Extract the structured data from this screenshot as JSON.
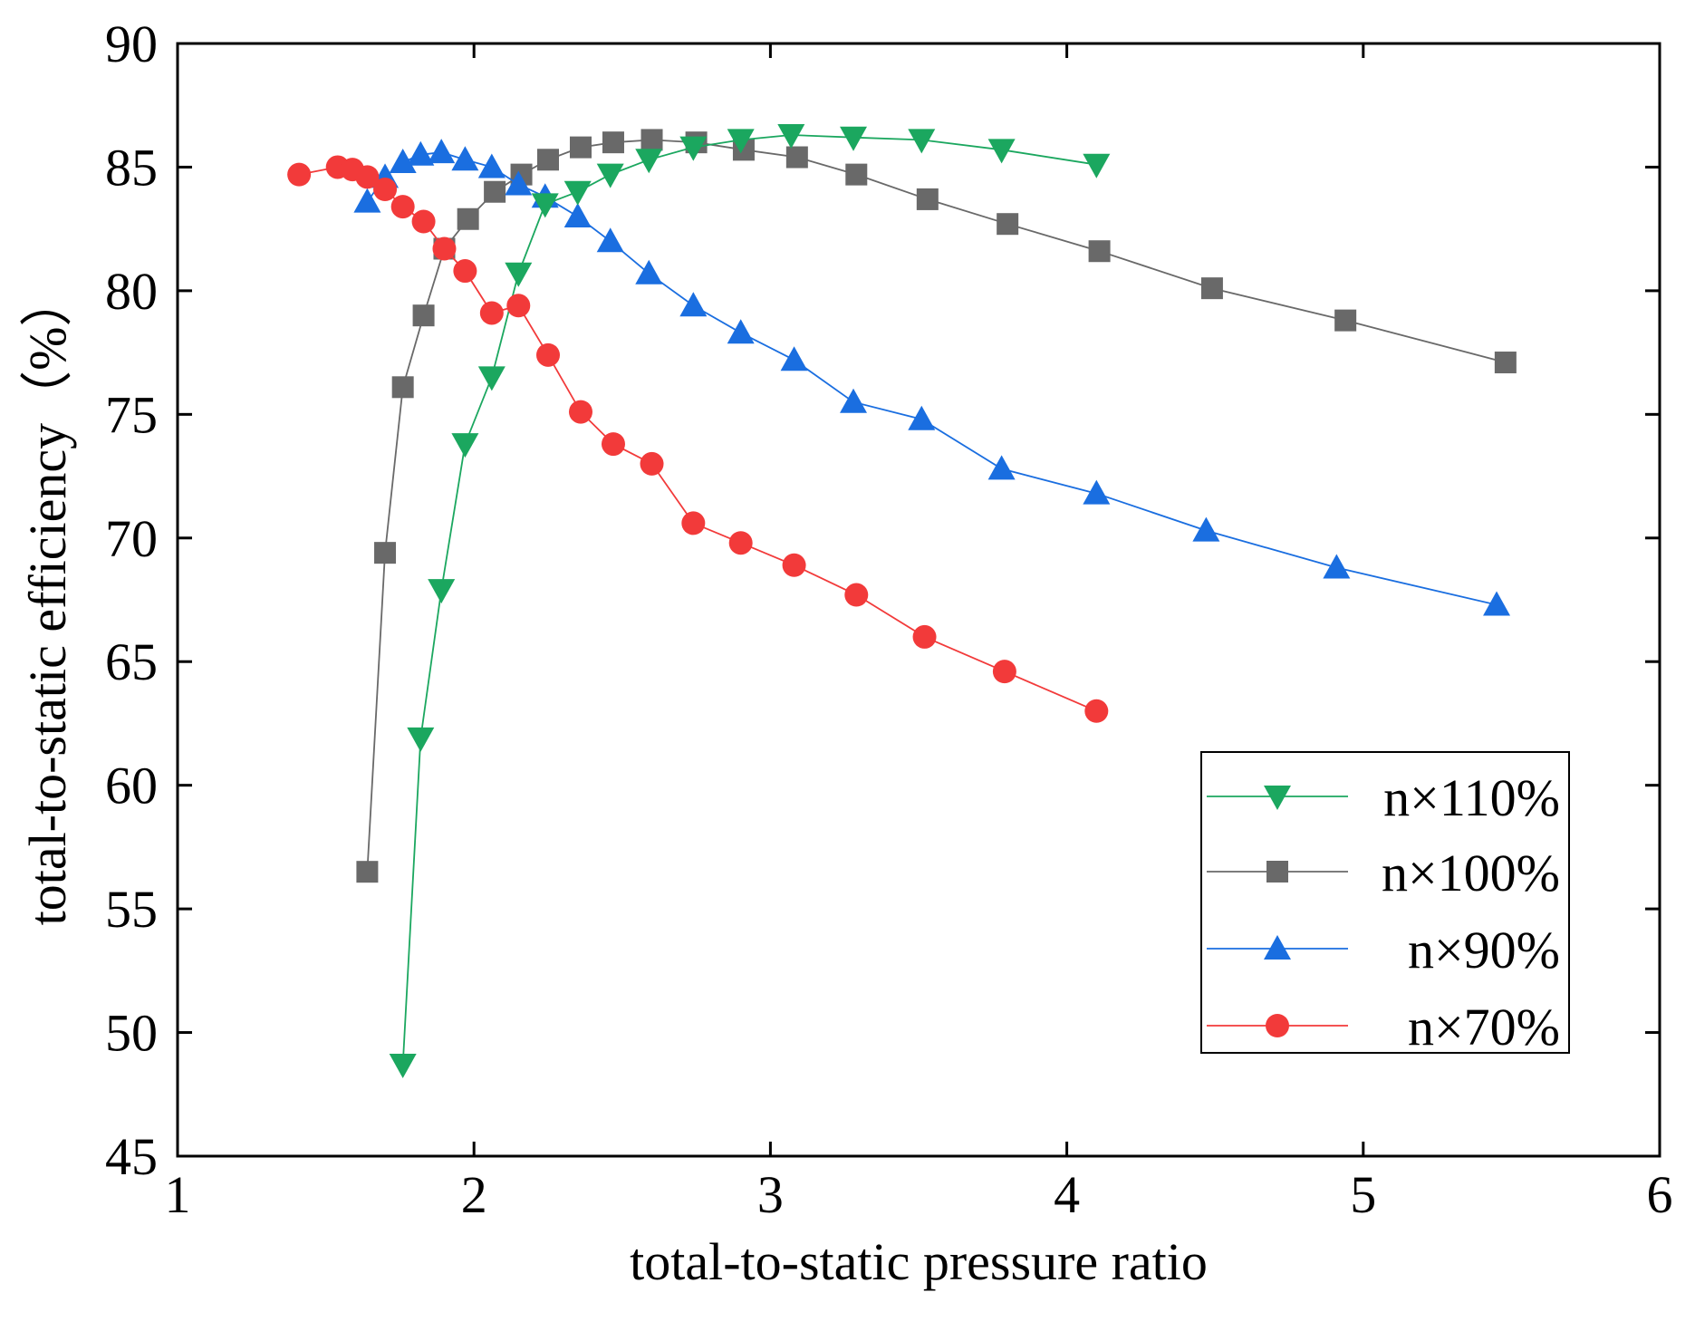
{
  "chart_data": {
    "type": "scatter",
    "title": "",
    "xlabel": "total-to-static pressure ratio",
    "ylabel": "total-to-static efficiency（%）",
    "xlim": [
      1,
      6
    ],
    "ylim": [
      45,
      90
    ],
    "xticks": [
      "1",
      "2",
      "3",
      "4",
      "5",
      "6"
    ],
    "yticks": [
      "45",
      "50",
      "55",
      "60",
      "65",
      "70",
      "75",
      "80",
      "85",
      "90"
    ],
    "grid": false,
    "legend_position": "bottom-right",
    "series": [
      {
        "name": "n×110%",
        "color": "#1ba75f",
        "marker": "triangle-down",
        "x": [
          1.76,
          1.82,
          1.89,
          1.97,
          2.06,
          2.15,
          2.24,
          2.35,
          2.46,
          2.59,
          2.74,
          2.9,
          3.07,
          3.28,
          3.51,
          3.78,
          4.1
        ],
        "y": [
          48.7,
          61.9,
          67.9,
          73.8,
          76.5,
          80.7,
          83.5,
          84.0,
          84.7,
          85.3,
          85.8,
          86.1,
          86.3,
          86.2,
          86.1,
          85.7,
          85.1
        ]
      },
      {
        "name": "n×100%",
        "color": "#696969",
        "marker": "square",
        "x": [
          1.64,
          1.7,
          1.76,
          1.83,
          1.9,
          1.98,
          2.07,
          2.16,
          2.25,
          2.36,
          2.47,
          2.6,
          2.75,
          2.91,
          3.09,
          3.29,
          3.53,
          3.8,
          4.11,
          4.49,
          4.94,
          5.48
        ],
        "y": [
          56.5,
          69.4,
          76.1,
          79.0,
          81.7,
          82.9,
          84.0,
          84.7,
          85.3,
          85.8,
          86.0,
          86.1,
          86.0,
          85.7,
          85.4,
          84.7,
          83.7,
          82.7,
          81.6,
          80.1,
          78.8,
          77.1
        ]
      },
      {
        "name": "n×90%",
        "color": "#1a6ee0",
        "marker": "triangle-up",
        "x": [
          1.64,
          1.7,
          1.76,
          1.82,
          1.89,
          1.97,
          2.06,
          2.15,
          2.24,
          2.35,
          2.46,
          2.59,
          2.74,
          2.9,
          3.08,
          3.28,
          3.51,
          3.78,
          4.1,
          4.47,
          4.91,
          5.45
        ],
        "y": [
          83.6,
          84.6,
          85.2,
          85.5,
          85.6,
          85.3,
          85.0,
          84.3,
          83.8,
          83.0,
          82.0,
          80.7,
          79.4,
          78.3,
          77.2,
          75.5,
          74.8,
          72.8,
          71.8,
          70.3,
          68.8,
          67.3
        ]
      },
      {
        "name": "n×70%",
        "color": "#f23a3a",
        "marker": "circle",
        "x": [
          1.41,
          1.54,
          1.59,
          1.64,
          1.7,
          1.76,
          1.83,
          1.9,
          1.97,
          2.06,
          2.15,
          2.25,
          2.36,
          2.47,
          2.6,
          2.74,
          2.9,
          3.08,
          3.29,
          3.52,
          3.79,
          4.1
        ],
        "y": [
          84.7,
          85.0,
          84.9,
          84.6,
          84.1,
          83.4,
          82.8,
          81.7,
          80.8,
          79.1,
          79.4,
          77.4,
          75.1,
          73.8,
          73.0,
          70.6,
          69.8,
          68.9,
          67.7,
          66.0,
          64.6,
          63.0
        ]
      }
    ]
  }
}
